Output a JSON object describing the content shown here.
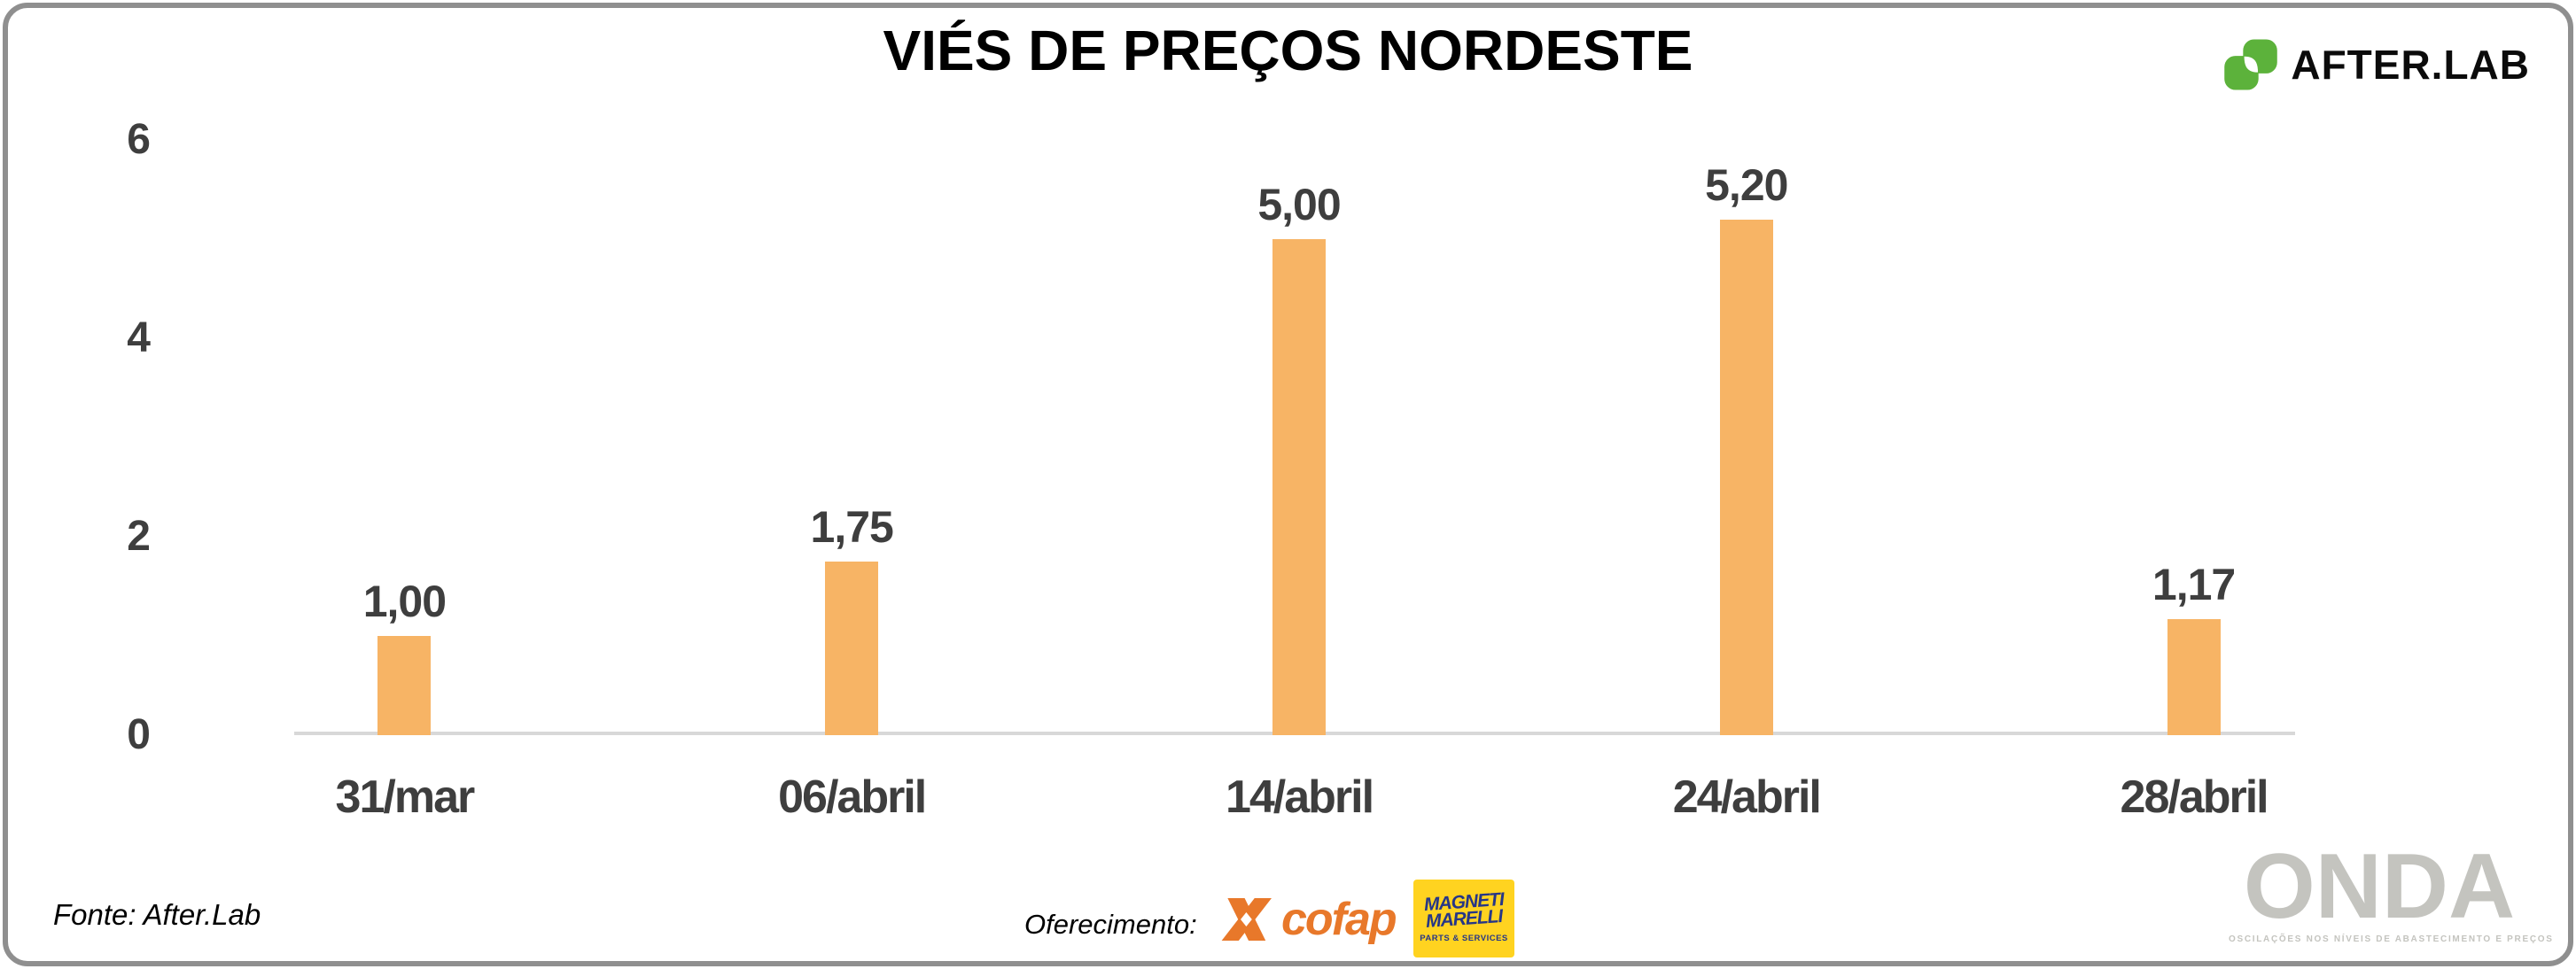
{
  "frame": {
    "border_color": "#8F8F8F"
  },
  "header": {
    "title": "VIÉS DE PREÇOS NORDESTE",
    "brand": {
      "name": "AFTER.LAB",
      "icon": "afterlab-leaves-icon",
      "green": "#5CB23B"
    }
  },
  "chart_data": {
    "type": "bar",
    "title": "VIÉS DE PREÇOS NORDESTE",
    "categories": [
      "31/mar",
      "06/abril",
      "14/abril",
      "24/abril",
      "28/abril"
    ],
    "values": [
      1.0,
      1.75,
      5.0,
      5.2,
      1.17
    ],
    "value_labels": [
      "1,00",
      "1,75",
      "5,00",
      "5,20",
      "1,17"
    ],
    "xlabel": "",
    "ylabel": "",
    "y_ticks": [
      0,
      2,
      4,
      6
    ],
    "ylim": [
      0,
      6
    ],
    "grid": false,
    "legend": false,
    "bar_color": "#F7B465",
    "label_color": "#3E3E3E",
    "axis_line_color": "#D8D8D8"
  },
  "footer": {
    "source": "Fonte: After.Lab",
    "sponsorship_label": "Oferecimento:",
    "cofap": {
      "name": "cofap",
      "orange": "#E8782A",
      "icon": "cofap-x-emblem-icon"
    },
    "magneti": {
      "line1": "MAGNETI",
      "line2": "MARELLI",
      "sub": "PARTS & SERVICES",
      "yellow": "#FFD320",
      "navy": "#263687"
    },
    "onda": {
      "name": "ONDA",
      "tagline": "OSCILAÇÕES NOS NÍVEIS DE ABASTECIMENTO E PREÇOS",
      "gray": "#C4C4BF"
    }
  }
}
